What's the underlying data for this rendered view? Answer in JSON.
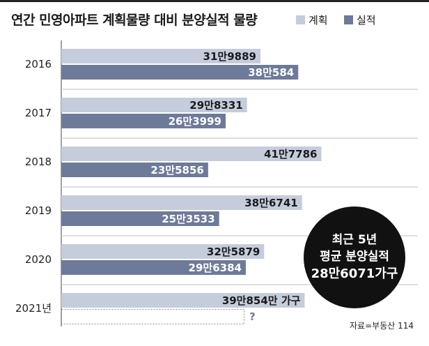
{
  "title": "연간 민영아파트 계획물량 대비 분양실적 물량",
  "legend": [
    {
      "label": "계획",
      "color": "#c5ccdb"
    },
    {
      "label": "실적",
      "color": "#6e7a9a"
    }
  ],
  "callout": {
    "line1": "최근 5년",
    "line2": "평균 분양실적",
    "line3": "28만6071가구"
  },
  "source": "자료=부동산 114",
  "chart_data": {
    "type": "bar",
    "orientation": "horizontal",
    "categories": [
      "2016",
      "2017",
      "2018",
      "2019",
      "2020",
      "2021년"
    ],
    "series": [
      {
        "name": "계획",
        "color": "#c5ccdb",
        "values": [
          319889,
          298331,
          417786,
          386741,
          325879,
          390854
        ],
        "labels": [
          "31만9889",
          "29만8331",
          "41만7786",
          "38만6741",
          "32만5879",
          "39만854만 가구"
        ]
      },
      {
        "name": "실적",
        "color": "#6e7a9a",
        "values": [
          380584,
          263999,
          235856,
          253533,
          296384,
          null
        ],
        "labels": [
          "38만584",
          "26만3999",
          "23만5856",
          "25만3533",
          "29만6384",
          "?"
        ]
      }
    ],
    "xlim": [
      0,
      500000
    ],
    "grid": false,
    "legend_position": "top-right"
  }
}
